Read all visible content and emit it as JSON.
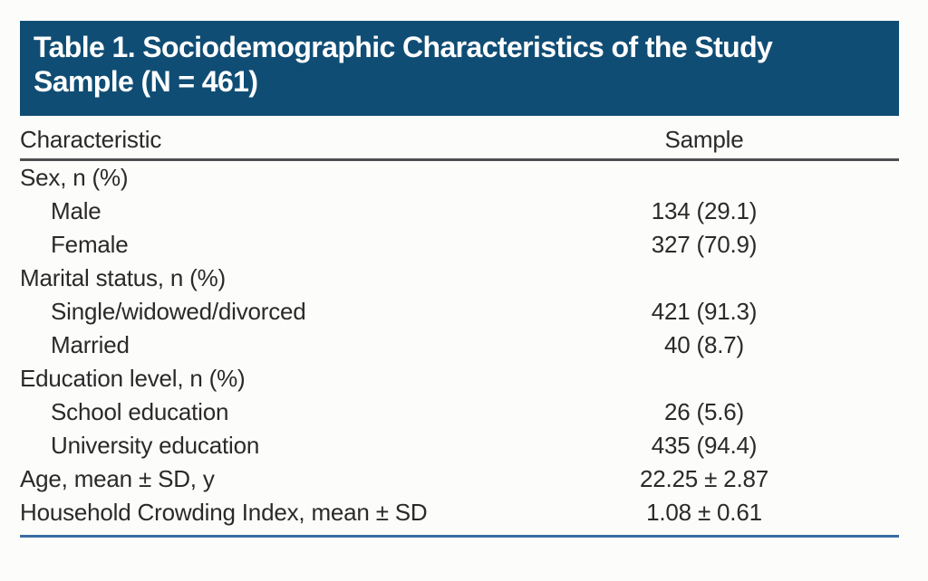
{
  "header": {
    "title_lines": [
      "Table 1. Sociodemographic Characteristics of the Study",
      "Sample (N = 461)"
    ]
  },
  "table": {
    "columns": [
      "Characteristic",
      "Sample"
    ],
    "rows": [
      {
        "label": "Sex, n (%)",
        "value": "",
        "indent": false
      },
      {
        "label": "Male",
        "value": "134 (29.1)",
        "indent": true
      },
      {
        "label": "Female",
        "value": "327 (70.9)",
        "indent": true
      },
      {
        "label": "Marital status, n (%)",
        "value": "",
        "indent": false
      },
      {
        "label": "Single/widowed/divorced",
        "value": "421 (91.3)",
        "indent": true
      },
      {
        "label": "Married",
        "value": "40 (8.7)",
        "indent": true
      },
      {
        "label": "Education level, n (%)",
        "value": "",
        "indent": false
      },
      {
        "label": "School education",
        "value": "26 (5.6)",
        "indent": true
      },
      {
        "label": "University education",
        "value": "435 (94.4)",
        "indent": true
      },
      {
        "label": "Age, mean ± SD, y",
        "value": "22.25 ± 2.87",
        "indent": false
      },
      {
        "label": "Household Crowding Index, mean ± SD",
        "value": "1.08 ± 0.61",
        "indent": false
      }
    ]
  },
  "colors": {
    "band_blue": "#104d74",
    "rule_gray": "#4f4f51",
    "rule_blue": "#3a6da3",
    "text": "#2b2929",
    "title_text": "#ffffff",
    "page_bg": "#fcfdfb"
  }
}
